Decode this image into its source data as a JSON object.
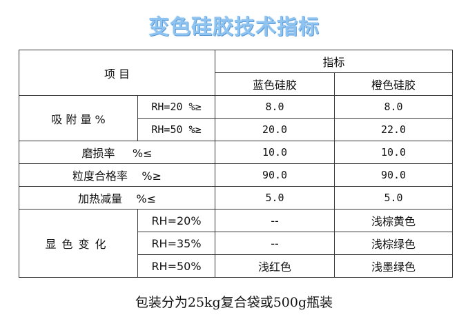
{
  "title": "变色硅胶技术指标",
  "header": {
    "item": "项 目",
    "indicator": "指标",
    "blue": "蓝色硅胶",
    "orange": "橙色硅胶"
  },
  "adsorption": {
    "label": "吸 附 量 %",
    "rows": [
      {
        "cond": "RH=20 %≥",
        "blue": "8.0",
        "orange": "8.0"
      },
      {
        "cond": "RH=50 %≥",
        "blue": "20.0",
        "orange": "22.0"
      }
    ]
  },
  "singles": [
    {
      "label": "磨损率     %≤",
      "blue": "10.0",
      "orange": "10.0"
    },
    {
      "label": "粒度合格率    %≥",
      "blue": "90.0",
      "orange": "90.0"
    },
    {
      "label": "加热减量    %≤",
      "blue": "5.0",
      "orange": "5.0"
    }
  ],
  "color_change": {
    "label": "显色变化",
    "rows": [
      {
        "cond": "RH=20%",
        "blue": "--",
        "orange": "浅棕黄色"
      },
      {
        "cond": "RH=35%",
        "blue": "--",
        "orange": "浅棕绿色"
      },
      {
        "cond": "RH=50%",
        "blue": "浅红色",
        "orange": "浅墨绿色"
      }
    ]
  },
  "footer": "包装分为25kg复合袋或500g瓶装"
}
